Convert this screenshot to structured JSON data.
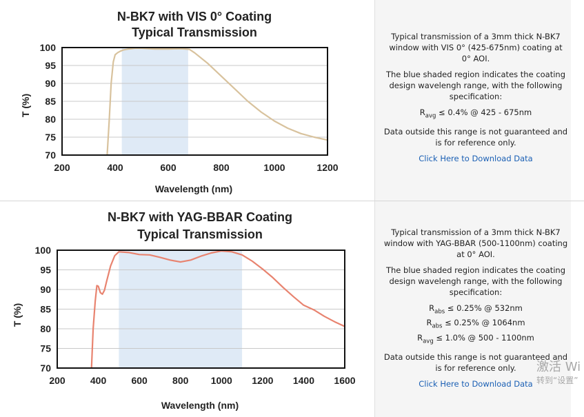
{
  "chart_data": [
    {
      "type": "line",
      "title": [
        "N-BK7 with VIS 0° Coating",
        "Typical Transmission"
      ],
      "xlabel": "Wavelength (nm)",
      "ylabel": "T (%)",
      "xlim": [
        200,
        1200
      ],
      "ylim": [
        70,
        100
      ],
      "xticks": [
        200,
        400,
        600,
        800,
        1000,
        1200
      ],
      "yticks": [
        70,
        75,
        80,
        85,
        90,
        95,
        100
      ],
      "grid": "horizontal",
      "shaded_region": [
        425,
        675
      ],
      "series": [
        {
          "color": "#d8c29d",
          "x": [
            370,
            378,
            385,
            393,
            400,
            410,
            420,
            430,
            450,
            475,
            500,
            550,
            600,
            650,
            680,
            700,
            750,
            800,
            850,
            900,
            950,
            1000,
            1050,
            1100,
            1150,
            1200
          ],
          "y": [
            70,
            80,
            90,
            96,
            98,
            98.6,
            99,
            99.3,
            99.6,
            99.8,
            99.8,
            99.6,
            99.6,
            99.7,
            99.5,
            98.5,
            95.5,
            92,
            88.5,
            85,
            82,
            79.5,
            77.5,
            76,
            75,
            74.2
          ]
        }
      ],
      "shade_color": "#dfeaf6",
      "description": [
        "Typical transmission of a 3mm thick N-BK7 window with VIS 0° (425-675nm) coating at 0° AOI.",
        "The blue shaded region indicates the coating design wavelengh range, with the following specification:"
      ],
      "spec_lines": [
        {
          "sym": "R",
          "sub": "avg",
          "rest": " ≤ 0.4% @ 425 - 675nm"
        }
      ],
      "note": "Data outside this range is not guaranteed and is for reference only.",
      "link": "Click Here to Download Data"
    },
    {
      "type": "line",
      "title": [
        "N-BK7 with YAG-BBAR Coating",
        "Typical Transmission"
      ],
      "xlabel": "Wavelength (nm)",
      "ylabel": "T (%)",
      "xlim": [
        200,
        1600
      ],
      "ylim": [
        70,
        100
      ],
      "xticks": [
        200,
        400,
        600,
        800,
        1000,
        1200,
        1400,
        1600
      ],
      "yticks": [
        70,
        75,
        80,
        85,
        90,
        95,
        100
      ],
      "grid": "horizontal",
      "shaded_region": [
        500,
        1100
      ],
      "series": [
        {
          "color": "#e8836f",
          "x": [
            367,
            375,
            385,
            393,
            400,
            410,
            420,
            430,
            440,
            460,
            480,
            500,
            550,
            600,
            650,
            700,
            750,
            800,
            850,
            900,
            950,
            1000,
            1050,
            1100,
            1150,
            1200,
            1250,
            1300,
            1350,
            1400,
            1450,
            1500,
            1550,
            1600
          ],
          "y": [
            70,
            80,
            87,
            91,
            90.8,
            89.2,
            88.8,
            89.8,
            92,
            96,
            98.6,
            99.6,
            99.4,
            98.9,
            98.8,
            98.2,
            97.5,
            97,
            97.5,
            98.5,
            99.3,
            99.8,
            99.6,
            98.8,
            97.2,
            95.2,
            93,
            90.5,
            88.2,
            86,
            84.8,
            83.2,
            81.8,
            80.6
          ]
        }
      ],
      "shade_color": "#dfeaf6",
      "description": [
        "Typical transmission of a 3mm thick N-BK7 window with YAG-BBAR (500-1100nm) coating at 0° AOI.",
        "The blue shaded region indicates the coating design wavelengh range, with the following specification:"
      ],
      "spec_lines": [
        {
          "sym": "R",
          "sub": "abs",
          "rest": " ≤ 0.25% @ 532nm"
        },
        {
          "sym": "R",
          "sub": "abs",
          "rest": " ≤ 0.25% @ 1064nm"
        },
        {
          "sym": "R",
          "sub": "avg",
          "rest": " ≤ 1.0% @ 500 - 1100nm"
        }
      ],
      "note": "Data outside this range is not guaranteed and is for reference only.",
      "link": "Click Here to Download Data"
    }
  ],
  "watermark": {
    "line1": "激活 Wi",
    "line2": "转到“设置”"
  }
}
